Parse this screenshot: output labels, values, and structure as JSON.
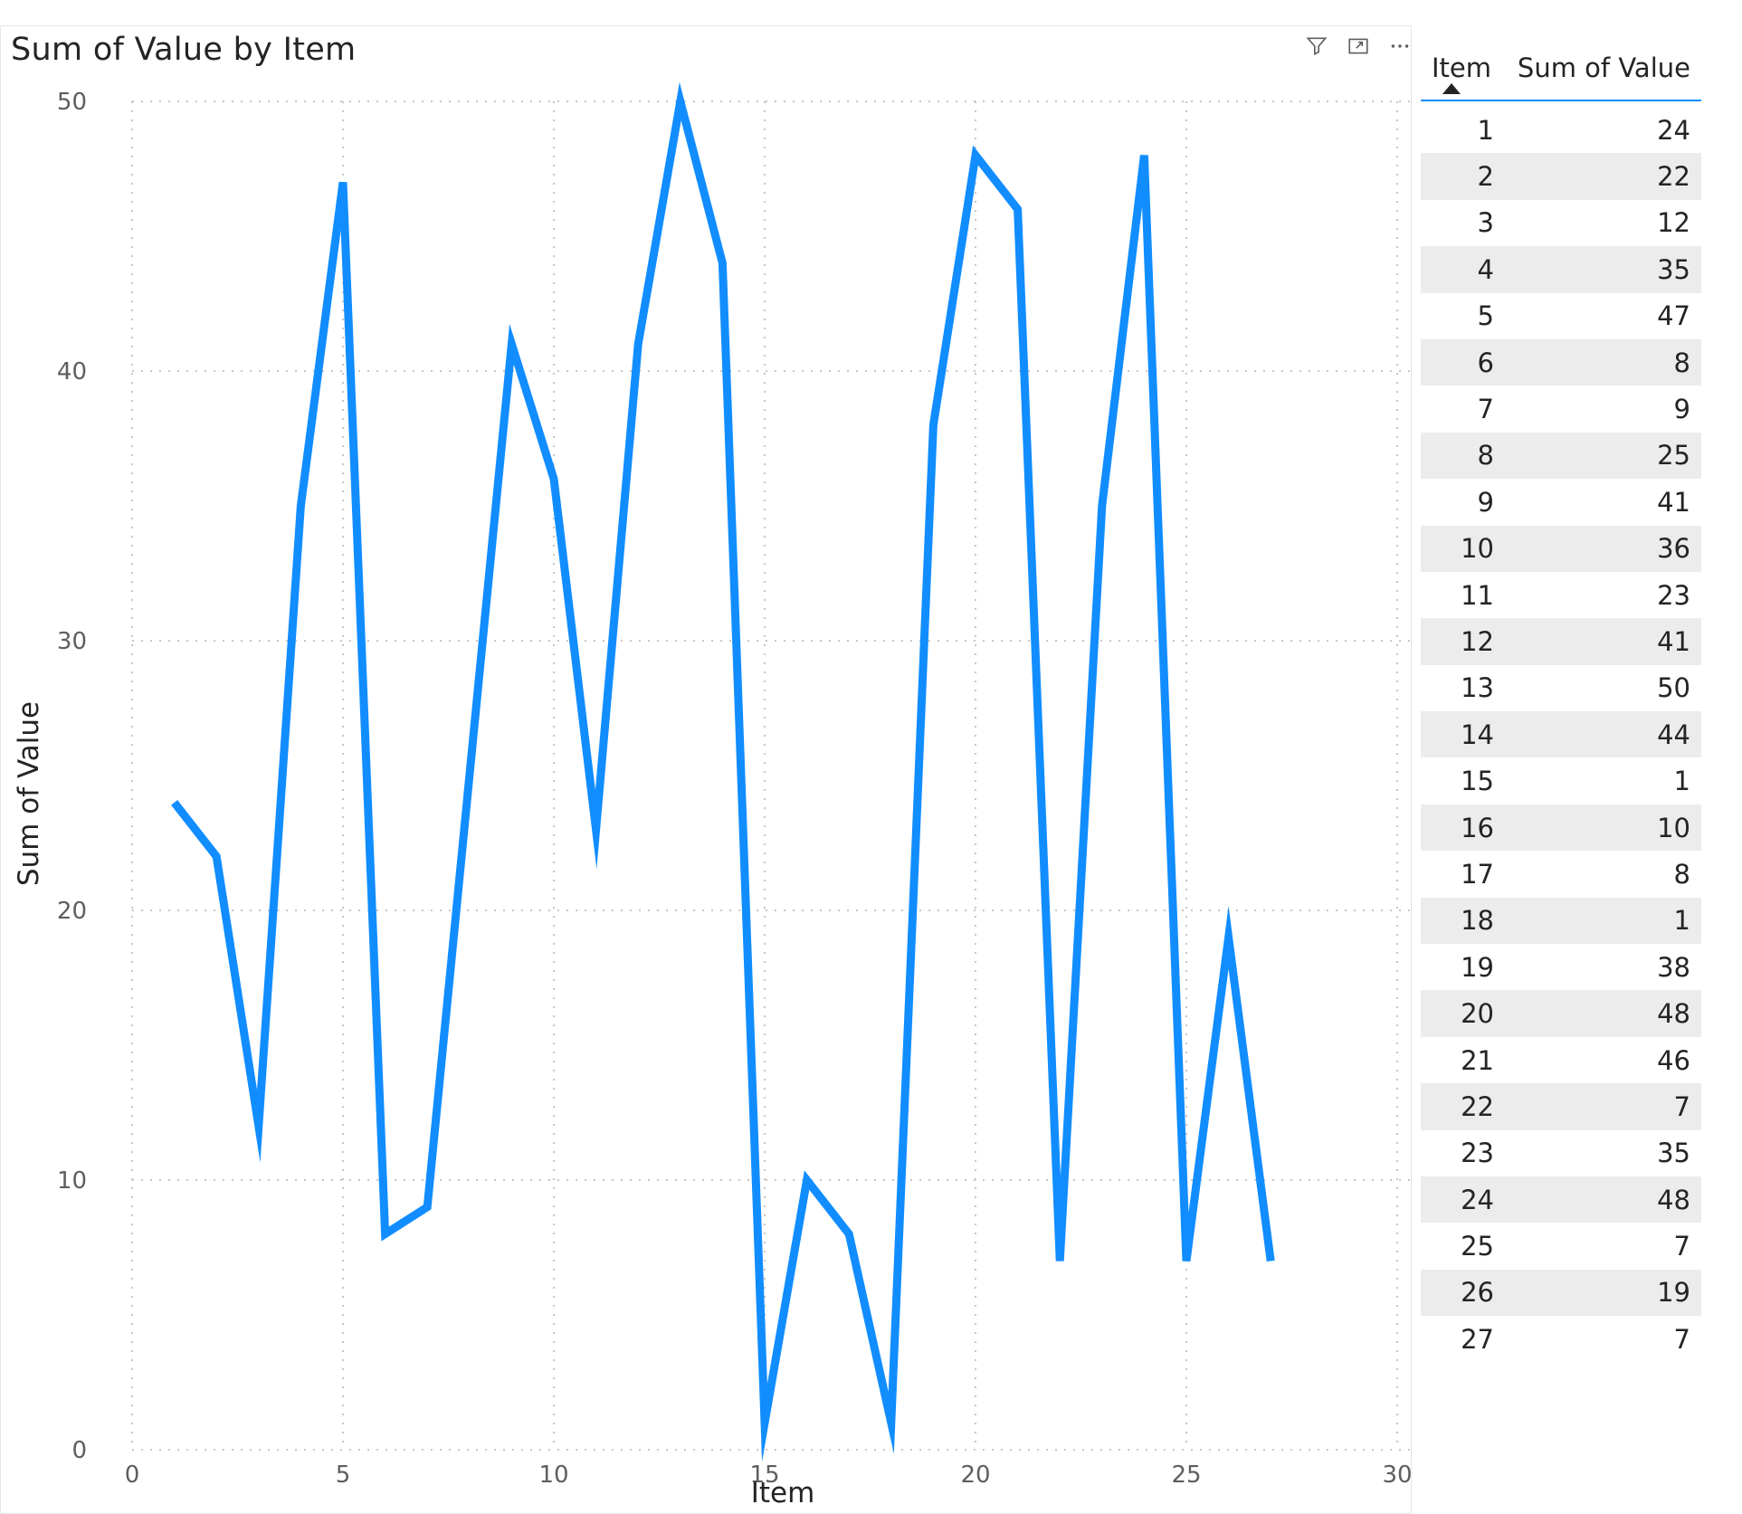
{
  "visual": {
    "title": "Sum of Value by Item",
    "icons": [
      "filter-icon",
      "focus-mode-icon",
      "more-options-icon"
    ]
  },
  "chart_data": {
    "type": "line",
    "title": "Sum of Value by Item",
    "xlabel": "Item",
    "ylabel": "Sum of Value",
    "xlim": [
      0,
      30
    ],
    "ylim": [
      0,
      50
    ],
    "xticks": [
      0,
      5,
      10,
      15,
      20,
      25,
      30
    ],
    "yticks": [
      0,
      10,
      20,
      30,
      40,
      50
    ],
    "grid": true,
    "color": "#118DFF",
    "x": [
      1,
      2,
      3,
      4,
      5,
      6,
      7,
      8,
      9,
      10,
      11,
      12,
      13,
      14,
      15,
      16,
      17,
      18,
      19,
      20,
      21,
      22,
      23,
      24,
      25,
      26,
      27
    ],
    "series": [
      {
        "values": [
          24,
          22,
          12,
          35,
          47,
          8,
          9,
          25,
          41,
          36,
          23,
          41,
          50,
          44,
          1,
          10,
          8,
          1,
          38,
          48,
          46,
          7,
          35,
          48,
          7,
          19,
          7
        ]
      }
    ]
  },
  "table": {
    "columns": [
      "Item",
      "Sum of Value"
    ],
    "sort": "Item ascending",
    "rows": [
      [
        "1",
        "24"
      ],
      [
        "2",
        "22"
      ],
      [
        "3",
        "12"
      ],
      [
        "4",
        "35"
      ],
      [
        "5",
        "47"
      ],
      [
        "6",
        "8"
      ],
      [
        "7",
        "9"
      ],
      [
        "8",
        "25"
      ],
      [
        "9",
        "41"
      ],
      [
        "10",
        "36"
      ],
      [
        "11",
        "23"
      ],
      [
        "12",
        "41"
      ],
      [
        "13",
        "50"
      ],
      [
        "14",
        "44"
      ],
      [
        "15",
        "1"
      ],
      [
        "16",
        "10"
      ],
      [
        "17",
        "8"
      ],
      [
        "18",
        "1"
      ],
      [
        "19",
        "38"
      ],
      [
        "20",
        "48"
      ],
      [
        "21",
        "46"
      ],
      [
        "22",
        "7"
      ],
      [
        "23",
        "35"
      ],
      [
        "24",
        "48"
      ],
      [
        "25",
        "7"
      ],
      [
        "26",
        "19"
      ],
      [
        "27",
        "7"
      ]
    ]
  }
}
